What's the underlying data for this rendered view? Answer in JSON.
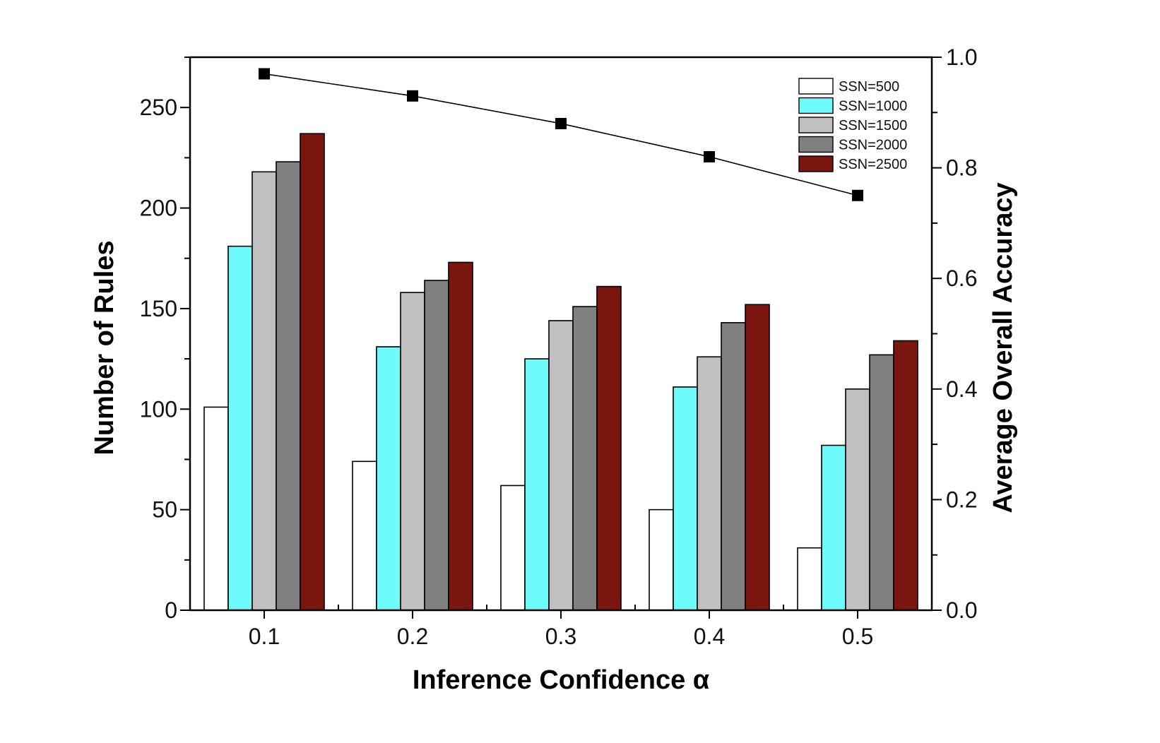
{
  "chart_data": {
    "type": "bar",
    "categories": [
      "0.1",
      "0.2",
      "0.3",
      "0.4",
      "0.5"
    ],
    "xlabel": "Inference Confidence α",
    "ylabel": "Number of Rules",
    "ylabel_right": "Average Overall Accuracy",
    "ylim": [
      0,
      275
    ],
    "ylim_right": [
      0.0,
      1.0
    ],
    "yticks": [
      0,
      50,
      100,
      150,
      200,
      250
    ],
    "yticks_right": [
      "0.0",
      "0.2",
      "0.4",
      "0.6",
      "0.8",
      "1.0"
    ],
    "legend_position": "top-right",
    "series": [
      {
        "name": "SSN=500",
        "color": "#ffffff",
        "values": [
          101,
          74,
          62,
          50,
          31
        ]
      },
      {
        "name": "SSN=1000",
        "color": "#6ffbfb",
        "values": [
          181,
          131,
          125,
          111,
          82
        ]
      },
      {
        "name": "SSN=1500",
        "color": "#c0c0c0",
        "values": [
          218,
          158,
          144,
          126,
          110
        ]
      },
      {
        "name": "SSN=2000",
        "color": "#808080",
        "values": [
          223,
          164,
          151,
          143,
          127
        ]
      },
      {
        "name": "SSN=2500",
        "color": "#7a1510",
        "values": [
          237,
          173,
          161,
          152,
          134
        ]
      }
    ],
    "line_series": {
      "axis": "right",
      "marker": "square",
      "values": [
        0.97,
        0.93,
        0.88,
        0.82,
        0.75
      ]
    }
  }
}
